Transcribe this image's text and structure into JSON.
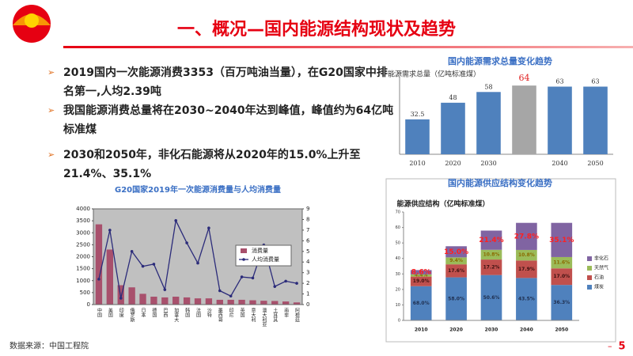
{
  "title": "一、概况—国内能源结构现状及趋势",
  "bullets": [
    "2019国内一次能源消费3353（百万吨油当量），在G20国家中排名第一,人均2.39吨",
    "我国能源消费总量将在2030~2040年达到峰值，峰值约为64亿吨标准煤",
    "2030和2050年，非化石能源将从2020年的15.0%上升至21.4%、35.1%"
  ],
  "source": "数据来源：中国工程院",
  "page": "5",
  "chart_data": [
    {
      "type": "bar",
      "title": "国内能源需求总量变化趋势",
      "y_label": "能源需求总量（亿吨标准煤）",
      "categories": [
        "2010",
        "2020",
        "2030",
        null,
        "2040",
        "2050"
      ],
      "values": [
        32.5,
        48,
        58,
        64,
        63,
        63
      ],
      "colors": [
        "#4f81bd",
        "#4f81bd",
        "#4f81bd",
        "#a6a6a6",
        "#4f81bd",
        "#4f81bd"
      ],
      "label_colors": [
        "#333333",
        "#333333",
        "#333333",
        "#e02020",
        "#333333",
        "#333333"
      ],
      "ylim": [
        0,
        70
      ]
    },
    {
      "type": "stacked_bar",
      "title": "国内能源供应结构变化趋势",
      "subtitle": "能源供应结构（亿吨标准煤）",
      "categories": [
        "2010",
        "2020",
        "2030",
        "2040",
        "2050"
      ],
      "series": [
        {
          "name": "煤炭",
          "color": "#4f81bd",
          "label_color": "#1f2f4f",
          "values": [
            22.1,
            27.8,
            29.3,
            27.4,
            22.9
          ],
          "share_labels": [
            "68.0%",
            "58.0%",
            "50.6%",
            "43.5%",
            "36.3%"
          ]
        },
        {
          "name": "石油",
          "color": "#c0504d",
          "label_color": "#3a1010",
          "values": [
            6.2,
            8.4,
            10.0,
            11.3,
            10.7
          ],
          "share_labels": [
            "19.0%",
            "17.6%",
            "17.2%",
            "17.9%",
            "17.0%"
          ]
        },
        {
          "name": "天然气",
          "color": "#9bbb59",
          "label_color": "#8a6a00",
          "values": [
            1.4,
            4.5,
            6.3,
            6.8,
            7.3
          ],
          "share_labels": [
            "4.4%",
            "9.4%",
            "10.8%",
            "10.8%",
            "11.6%"
          ]
        },
        {
          "name": "非化石",
          "color": "#8064a2",
          "label_color": "#ff2020",
          "values": [
            2.8,
            7.2,
            12.4,
            17.5,
            22.1
          ],
          "share_labels": [
            "8.6%",
            "15.0%",
            "21.4%",
            "27.8%",
            "35.1%"
          ]
        }
      ],
      "ylim": [
        0,
        70
      ],
      "yticks": [
        0,
        10,
        20,
        30,
        40,
        50,
        60,
        70
      ],
      "legend": "right"
    },
    {
      "type": "bar_line",
      "title": "G20国家2019年一次能源消费量与人均消费量",
      "categories": [
        "中国",
        "美国",
        "印度",
        "俄罗斯",
        "日本",
        "德国",
        "巴西",
        "加拿大",
        "韩国",
        "法国",
        "沙特",
        "墨西哥",
        "印尼",
        "英国",
        "意大利",
        "澳大利亚",
        "土耳其",
        "南非",
        "阿根廷"
      ],
      "series": [
        {
          "name": "消费量",
          "color": "#a8506c",
          "values": [
            3353,
            2300,
            810,
            720,
            450,
            330,
            300,
            330,
            300,
            260,
            260,
            200,
            200,
            200,
            180,
            160,
            150,
            130,
            90
          ]
        },
        {
          "name": "人均消费量",
          "color": "#2b2b7a",
          "axis": "y2",
          "values": [
            2.39,
            7.0,
            0.6,
            5.0,
            3.6,
            3.8,
            1.4,
            7.9,
            5.8,
            3.9,
            7.2,
            1.3,
            0.8,
            2.6,
            2.5,
            5.6,
            1.7,
            2.2,
            2.0
          ]
        }
      ],
      "ylim": [
        0,
        4000
      ],
      "yticks": [
        0,
        500,
        1000,
        1500,
        2000,
        2500,
        3000,
        3500,
        4000
      ],
      "y2lim": [
        0,
        9
      ],
      "y2ticks": [
        0,
        1,
        2,
        3,
        4,
        5,
        6,
        7,
        8,
        9
      ],
      "legend": "right"
    }
  ]
}
